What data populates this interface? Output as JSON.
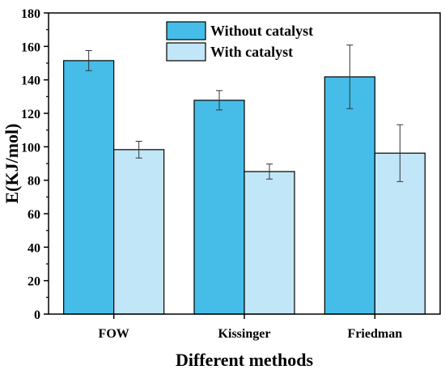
{
  "chart_data": {
    "type": "bar",
    "title": "",
    "xlabel": "Different methods",
    "ylabel": "E(KJ/mol)",
    "ylim": [
      0,
      180
    ],
    "yticks": [
      0,
      20,
      40,
      60,
      80,
      100,
      120,
      140,
      160,
      180
    ],
    "categories": [
      "FOW",
      "Kissinger",
      "Friedman"
    ],
    "series": [
      {
        "name": "Without catalyst",
        "color": "#45bde8",
        "values": [
          151.5,
          127.8,
          141.8
        ],
        "errors": [
          6.0,
          5.8,
          19.0
        ]
      },
      {
        "name": "With catalyst",
        "color": "#c1e6f7",
        "values": [
          98.3,
          85.2,
          96.2
        ],
        "errors": [
          5.0,
          4.5,
          17.0
        ]
      }
    ],
    "legend_position": "top-center",
    "grid": false
  }
}
